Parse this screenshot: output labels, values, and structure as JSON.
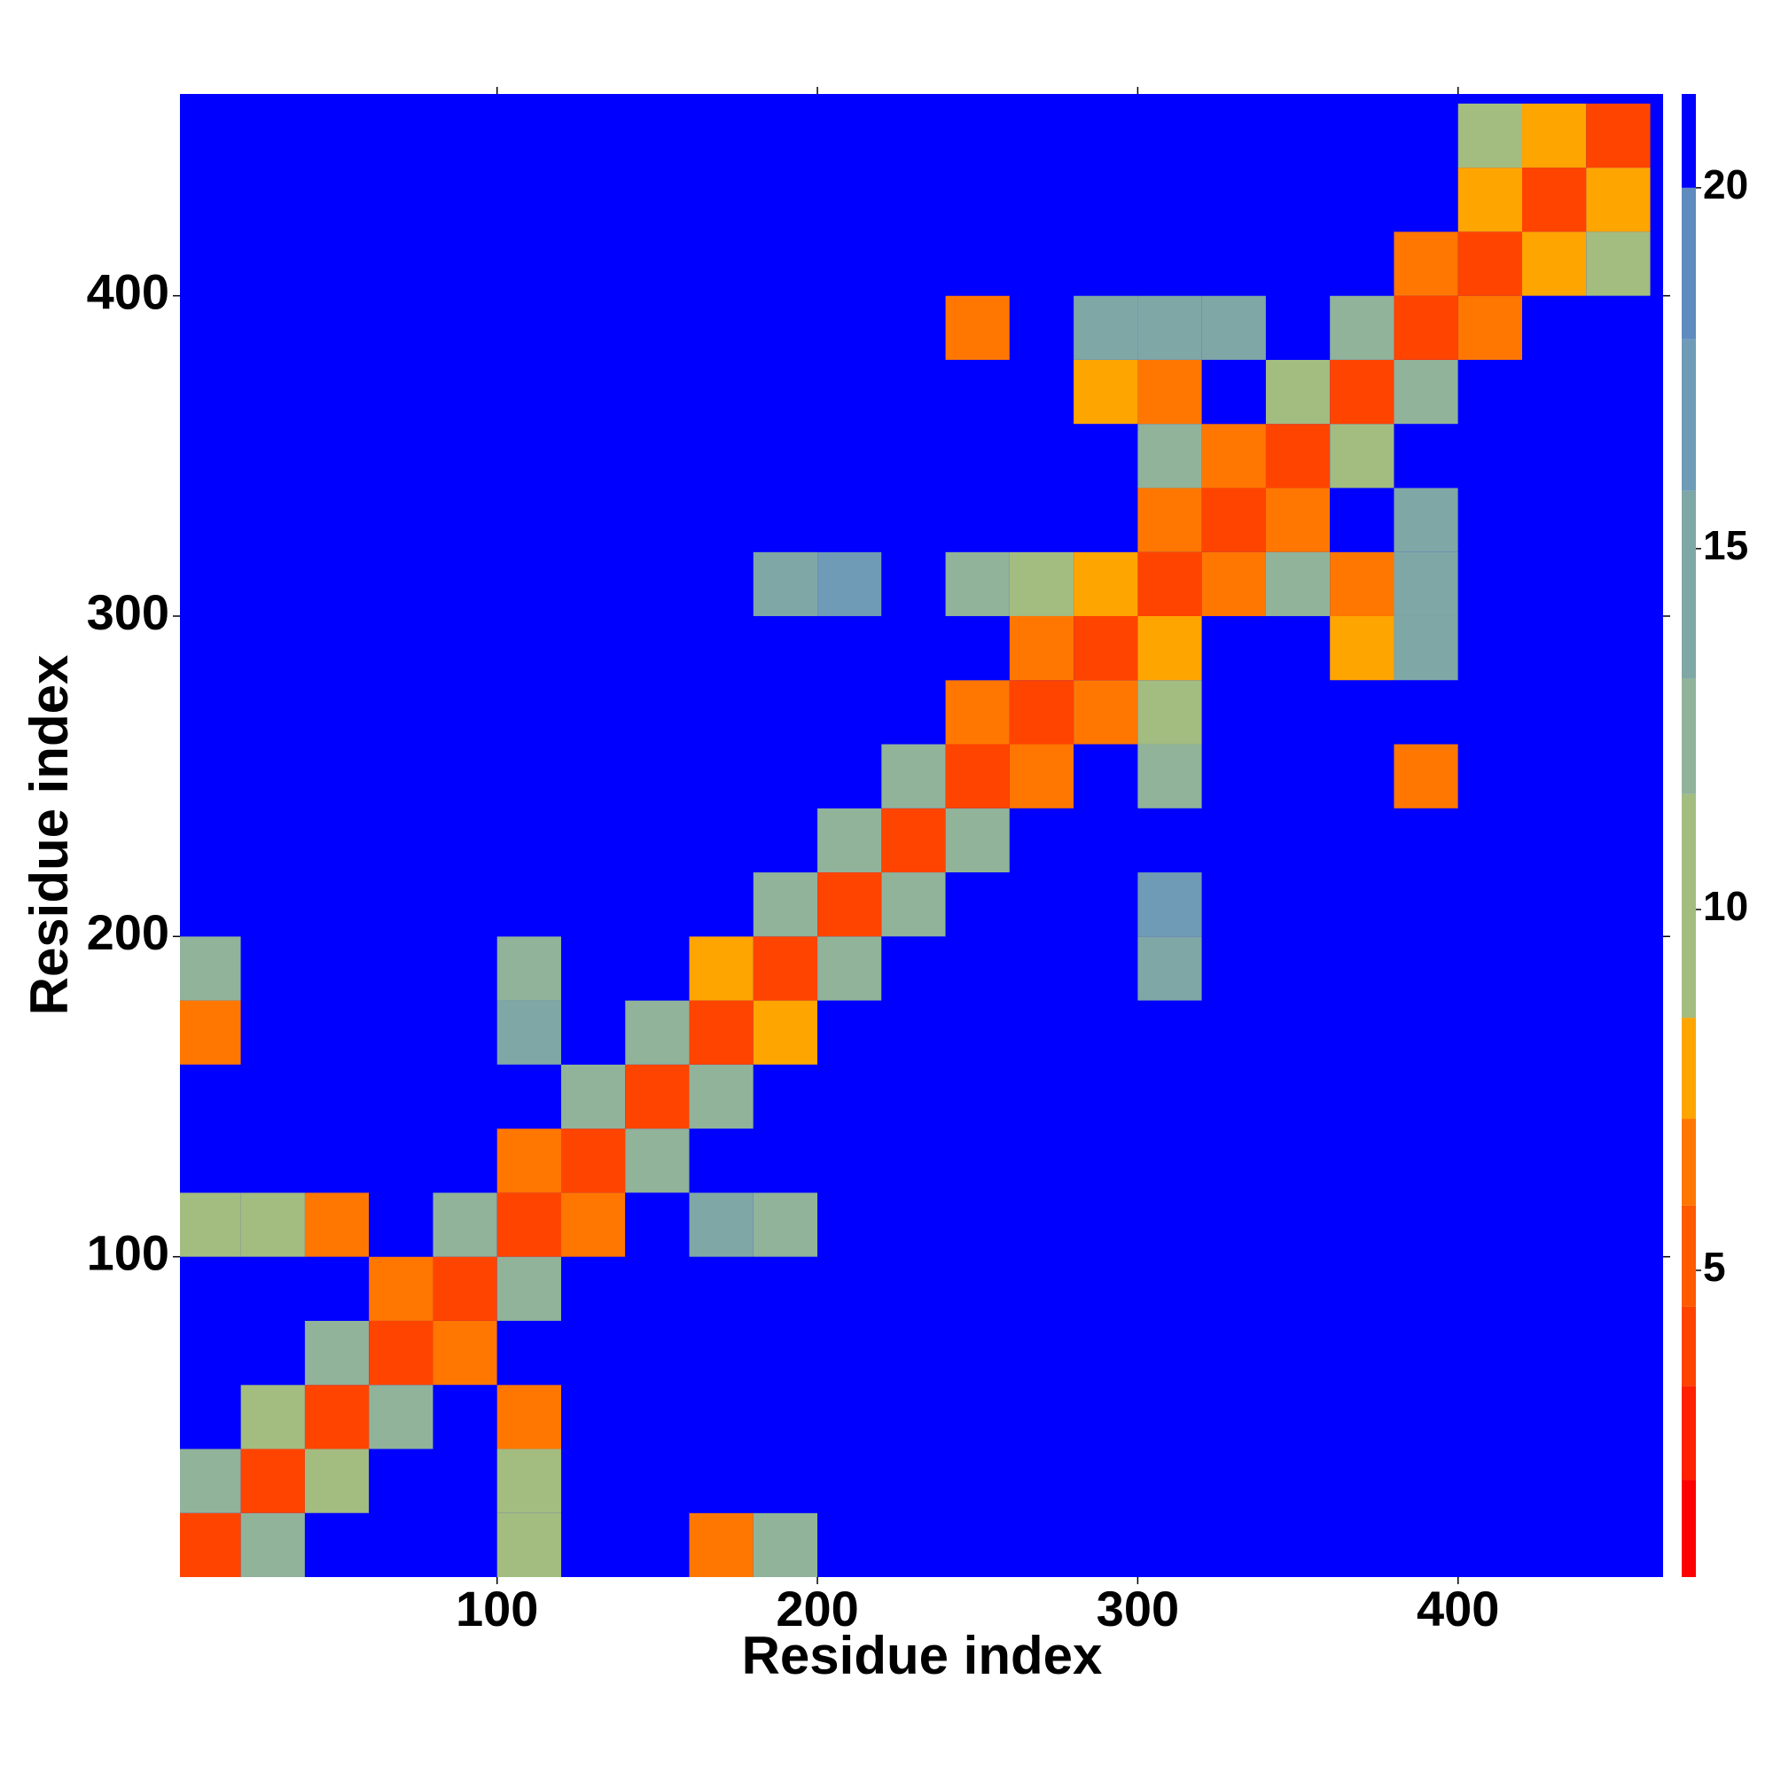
{
  "chart_data": {
    "type": "heatmap",
    "xlabel": "Residue index",
    "ylabel": "Residue index",
    "x_bins": [
      0,
      20,
      40,
      60,
      80,
      100,
      120,
      140,
      160,
      180,
      200,
      220,
      240,
      260,
      280,
      300,
      320,
      340,
      360,
      380,
      400,
      420,
      440,
      460
    ],
    "y_bins": [
      0,
      20,
      40,
      60,
      80,
      100,
      120,
      140,
      160,
      180,
      200,
      220,
      240,
      260,
      280,
      300,
      320,
      340,
      360,
      380,
      400,
      420,
      440,
      460
    ],
    "xlim": [
      1,
      464
    ],
    "ylim": [
      0,
      463
    ],
    "xticks": [
      100,
      200,
      300,
      400
    ],
    "yticks": [
      100,
      200,
      300,
      400
    ],
    "zlim": [
      0.75,
      21.3
    ],
    "zticks": [
      5,
      10,
      15,
      20
    ],
    "color_levels": [
      {
        "min": 0.75,
        "max": 2.1,
        "color": "#ff0000"
      },
      {
        "min": 2.1,
        "max": 3.4,
        "color": "#ff2200"
      },
      {
        "min": 3.4,
        "max": 4.5,
        "color": "#ff4400"
      },
      {
        "min": 4.5,
        "max": 5.9,
        "color": "#ff5a00"
      },
      {
        "min": 5.9,
        "max": 7.1,
        "color": "#ff7700"
      },
      {
        "min": 7.1,
        "max": 8.5,
        "color": "#ffa500"
      },
      {
        "min": 8.5,
        "max": 11.6,
        "color": "#a3bc80"
      },
      {
        "min": 11.6,
        "max": 13.2,
        "color": "#90b39a"
      },
      {
        "min": 13.2,
        "max": 15.8,
        "color": "#7fa7a6"
      },
      {
        "min": 15.8,
        "max": 17.9,
        "color": "#6f9bb7"
      },
      {
        "min": 17.9,
        "max": 20,
        "color": "#5f8bbe"
      },
      {
        "min": 20,
        "max": 21.3,
        "color": "#0000ff"
      }
    ],
    "values": [
      [
        3.8,
        12,
        21,
        21,
        21,
        9,
        21,
        21,
        6,
        12,
        21,
        21,
        21,
        21,
        21,
        21,
        21,
        21,
        21,
        21,
        21,
        21,
        21
      ],
      [
        12,
        3.8,
        9,
        21,
        21,
        11,
        21,
        21,
        21,
        21,
        21,
        21,
        21,
        21,
        21,
        21,
        21,
        21,
        21,
        21,
        21,
        21,
        21
      ],
      [
        21,
        9,
        3.8,
        12,
        21,
        7,
        21,
        21,
        21,
        21,
        21,
        21,
        21,
        21,
        21,
        21,
        21,
        21,
        21,
        21,
        21,
        21,
        21
      ],
      [
        21,
        21,
        12,
        3.8,
        7,
        21,
        21,
        21,
        21,
        21,
        21,
        21,
        21,
        21,
        21,
        21,
        21,
        21,
        21,
        21,
        21,
        21,
        21
      ],
      [
        21,
        21,
        21,
        7,
        3.8,
        12,
        21,
        21,
        21,
        21,
        21,
        21,
        21,
        21,
        21,
        21,
        21,
        21,
        21,
        21,
        21,
        21,
        21
      ],
      [
        9,
        11,
        7,
        21,
        12,
        3.8,
        7,
        21,
        14,
        13,
        21,
        21,
        21,
        21,
        21,
        21,
        21,
        21,
        21,
        21,
        21,
        21,
        21
      ],
      [
        21,
        21,
        21,
        21,
        21,
        7,
        3.8,
        12,
        21,
        21,
        21,
        21,
        21,
        21,
        21,
        21,
        21,
        21,
        21,
        21,
        21,
        21,
        21
      ],
      [
        21,
        21,
        21,
        21,
        21,
        21,
        12,
        3.8,
        12,
        21,
        21,
        21,
        21,
        21,
        21,
        21,
        21,
        21,
        21,
        21,
        21,
        21,
        21
      ],
      [
        6,
        21,
        21,
        21,
        21,
        14,
        21,
        12,
        3.8,
        8,
        21,
        21,
        21,
        21,
        21,
        21,
        21,
        21,
        21,
        21,
        21,
        21,
        21
      ],
      [
        12,
        21,
        21,
        21,
        21,
        13,
        21,
        21,
        8,
        3.8,
        12,
        21,
        21,
        21,
        21,
        15,
        21,
        21,
        21,
        21,
        21,
        21,
        21
      ],
      [
        21,
        21,
        21,
        21,
        21,
        21,
        21,
        21,
        21,
        12,
        3.8,
        12,
        21,
        21,
        21,
        16,
        21,
        21,
        21,
        21,
        21,
        21,
        21
      ],
      [
        21,
        21,
        21,
        21,
        21,
        21,
        21,
        21,
        21,
        21,
        12,
        3.8,
        12,
        21,
        21,
        21,
        21,
        21,
        21,
        21,
        21,
        21,
        21
      ],
      [
        21,
        21,
        21,
        21,
        21,
        21,
        21,
        21,
        21,
        21,
        21,
        12,
        3.8,
        7,
        21,
        13,
        21,
        21,
        21,
        7,
        21,
        21,
        21
      ],
      [
        21,
        21,
        21,
        21,
        21,
        21,
        21,
        21,
        21,
        21,
        21,
        21,
        7,
        3.8,
        7,
        11,
        21,
        21,
        21,
        21,
        21,
        21,
        21
      ],
      [
        21,
        21,
        21,
        21,
        21,
        21,
        21,
        21,
        21,
        21,
        21,
        21,
        21,
        7,
        3.8,
        8,
        21,
        21,
        8,
        14,
        21,
        21,
        21
      ],
      [
        21,
        21,
        21,
        21,
        21,
        21,
        21,
        21,
        21,
        15,
        16,
        21,
        13,
        11,
        8,
        3.8,
        7,
        12,
        7,
        14,
        21,
        21,
        21
      ],
      [
        21,
        21,
        21,
        21,
        21,
        21,
        21,
        21,
        21,
        21,
        21,
        21,
        21,
        21,
        21,
        7,
        3.8,
        7,
        21,
        15,
        21,
        21,
        21
      ],
      [
        21,
        21,
        21,
        21,
        21,
        21,
        21,
        21,
        21,
        21,
        21,
        21,
        21,
        21,
        21,
        12,
        7,
        3.8,
        9,
        21,
        21,
        21,
        21
      ],
      [
        21,
        21,
        21,
        21,
        21,
        21,
        21,
        21,
        21,
        21,
        21,
        21,
        21,
        21,
        8,
        7,
        21,
        9,
        3.8,
        12,
        21,
        21,
        21
      ],
      [
        21,
        21,
        21,
        21,
        21,
        21,
        21,
        21,
        21,
        21,
        21,
        21,
        7,
        21,
        14,
        14,
        15,
        21,
        12,
        3.8,
        7,
        21,
        21
      ],
      [
        21,
        21,
        21,
        21,
        21,
        21,
        21,
        21,
        21,
        21,
        21,
        21,
        21,
        21,
        21,
        21,
        21,
        21,
        21,
        7,
        3.8,
        8,
        9
      ],
      [
        21,
        21,
        21,
        21,
        21,
        21,
        21,
        21,
        21,
        21,
        21,
        21,
        21,
        21,
        21,
        21,
        21,
        21,
        21,
        21,
        8,
        3.8,
        8
      ],
      [
        21,
        21,
        21,
        21,
        21,
        21,
        21,
        21,
        21,
        21,
        21,
        21,
        21,
        21,
        21,
        21,
        21,
        21,
        21,
        21,
        9,
        8,
        3.8
      ]
    ]
  }
}
